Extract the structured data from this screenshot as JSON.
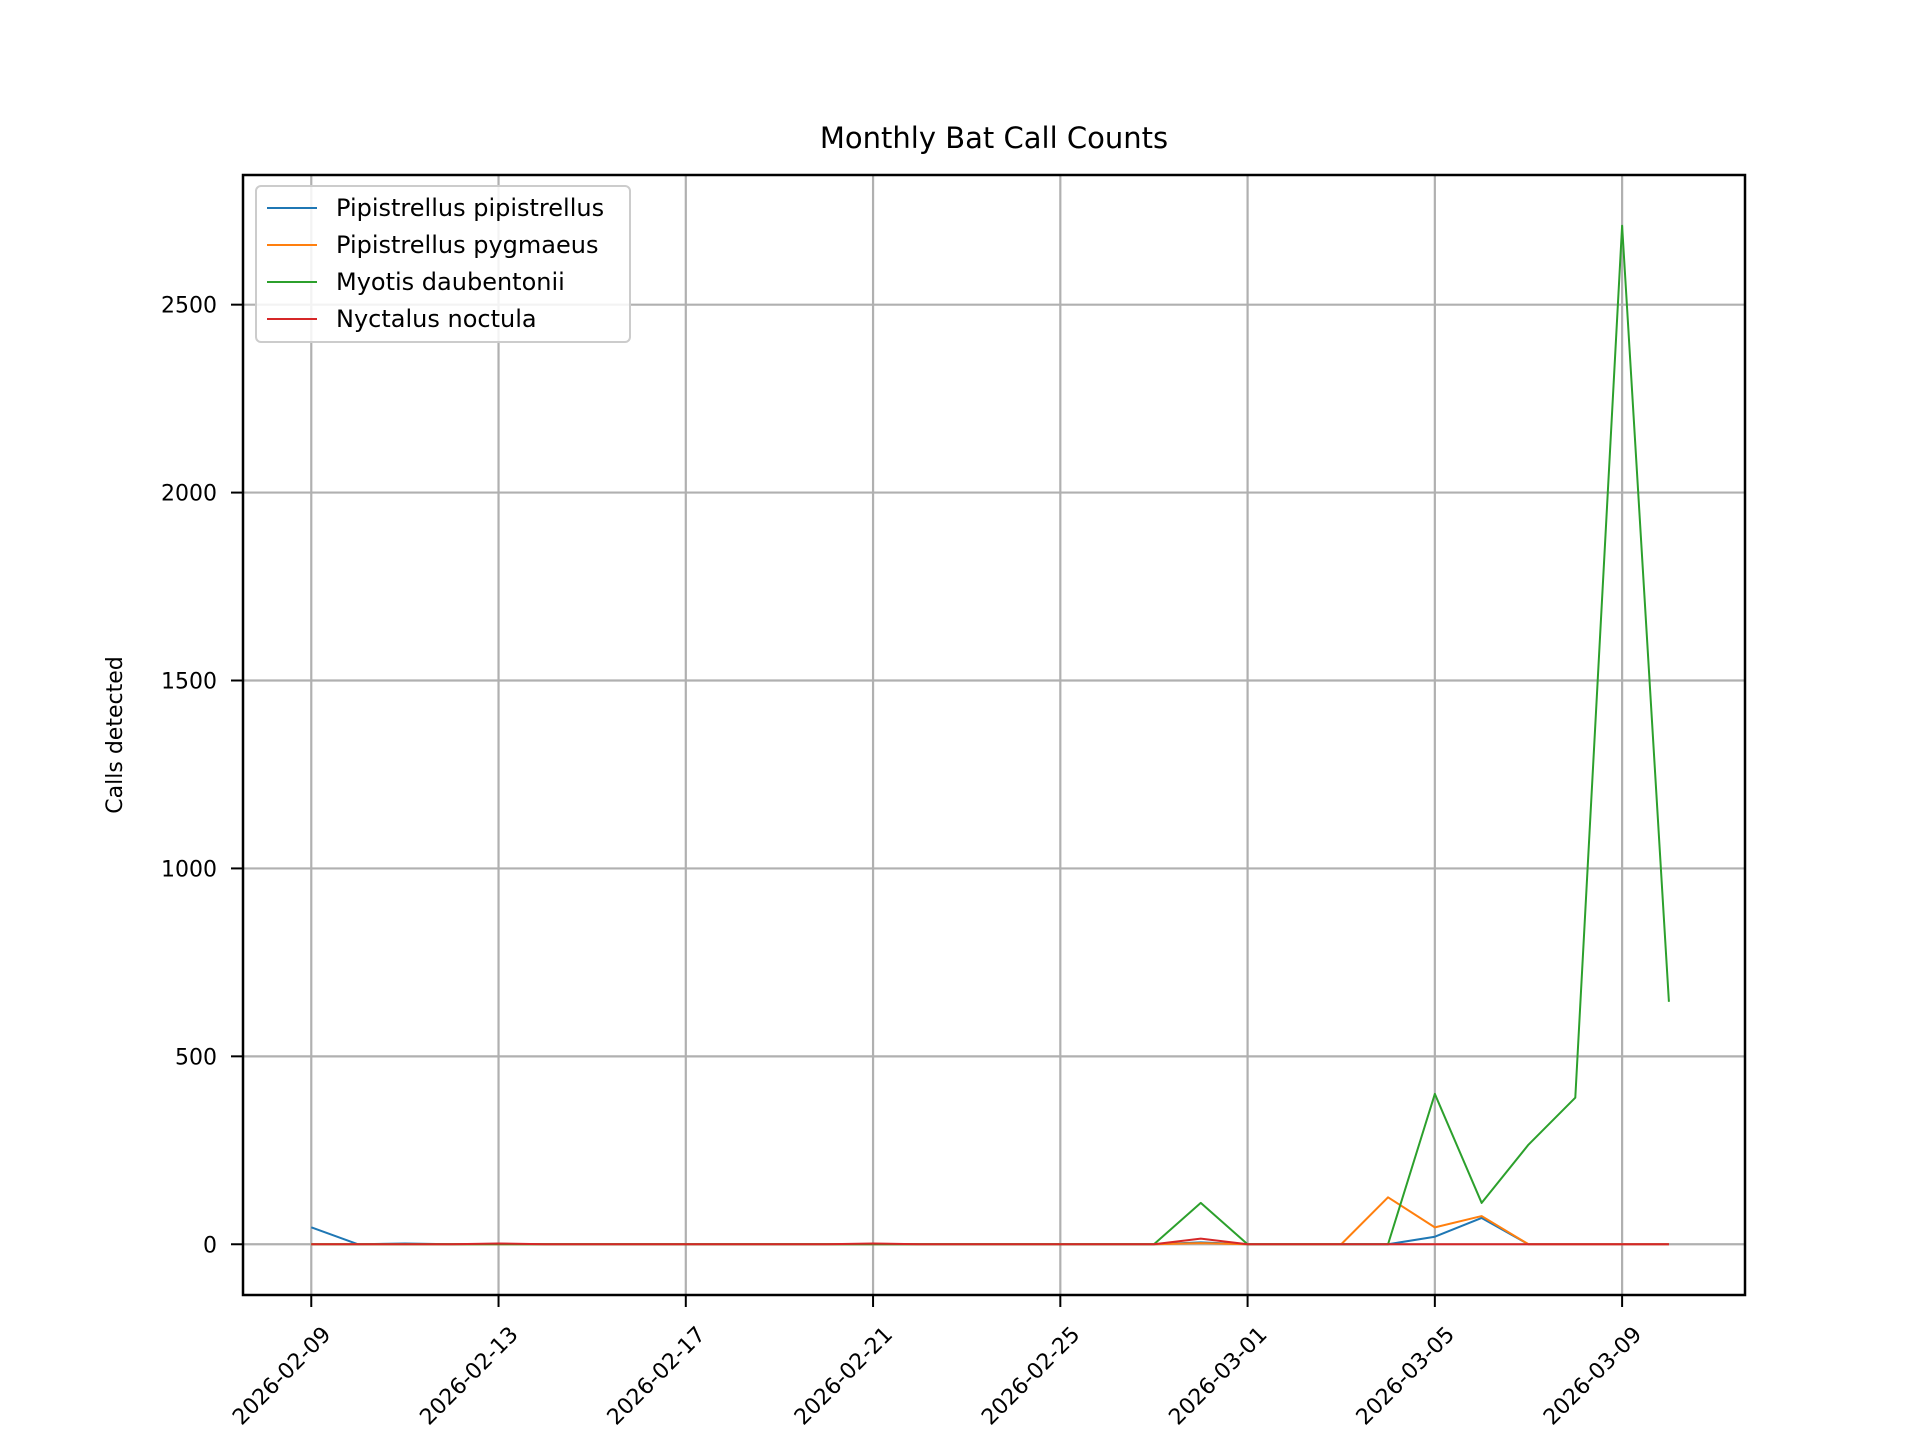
{
  "chart_data": {
    "type": "line",
    "title": "Monthly Bat Call Counts",
    "xlabel": "",
    "ylabel": "Calls detected",
    "x": [
      "2026-02-09",
      "2026-02-10",
      "2026-02-11",
      "2026-02-12",
      "2026-02-13",
      "2026-02-14",
      "2026-02-15",
      "2026-02-16",
      "2026-02-17",
      "2026-02-18",
      "2026-02-19",
      "2026-02-20",
      "2026-02-21",
      "2026-02-22",
      "2026-02-23",
      "2026-02-24",
      "2026-02-25",
      "2026-02-26",
      "2026-02-27",
      "2026-02-28",
      "2026-03-01",
      "2026-03-02",
      "2026-03-03",
      "2026-03-04",
      "2026-03-05",
      "2026-03-06",
      "2026-03-07",
      "2026-03-08",
      "2026-03-09",
      "2026-03-10"
    ],
    "xticks": [
      "2026-02-09",
      "2026-02-13",
      "2026-02-17",
      "2026-02-21",
      "2026-02-25",
      "2026-03-01",
      "2026-03-05",
      "2026-03-09"
    ],
    "yticks": [
      0,
      500,
      1000,
      1500,
      2000,
      2500
    ],
    "xlim": [
      "2026-02-07T13:00",
      "2026-03-11T15:00"
    ],
    "ylim": [
      -135,
      2845
    ],
    "grid": true,
    "legend_position": "top-left",
    "series": [
      {
        "name": "Pipistrellus pipistrellus",
        "color": "#1f77b4",
        "values": [
          45,
          0,
          2,
          0,
          1,
          0,
          0,
          0,
          0,
          0,
          0,
          0,
          0,
          0,
          0,
          0,
          0,
          0,
          0,
          5,
          0,
          0,
          0,
          0,
          20,
          70,
          0,
          0,
          0,
          0
        ]
      },
      {
        "name": "Pipistrellus pygmaeus",
        "color": "#ff7f0e",
        "values": [
          0,
          0,
          0,
          0,
          0,
          0,
          0,
          0,
          0,
          0,
          0,
          0,
          0,
          0,
          0,
          0,
          0,
          0,
          0,
          3,
          0,
          0,
          0,
          125,
          45,
          75,
          0,
          0,
          0,
          0
        ]
      },
      {
        "name": "Myotis daubentonii",
        "color": "#2ca02c",
        "values": [
          0,
          0,
          0,
          0,
          0,
          0,
          0,
          0,
          0,
          0,
          0,
          0,
          0,
          0,
          0,
          0,
          0,
          0,
          0,
          110,
          0,
          0,
          0,
          0,
          400,
          110,
          265,
          390,
          2710,
          645
        ]
      },
      {
        "name": "Nyctalus noctula",
        "color": "#d62728",
        "values": [
          0,
          0,
          0,
          0,
          2,
          0,
          0,
          0,
          0,
          0,
          0,
          0,
          2,
          0,
          0,
          0,
          0,
          0,
          0,
          15,
          0,
          0,
          0,
          0,
          0,
          0,
          0,
          0,
          0,
          0
        ]
      }
    ]
  }
}
